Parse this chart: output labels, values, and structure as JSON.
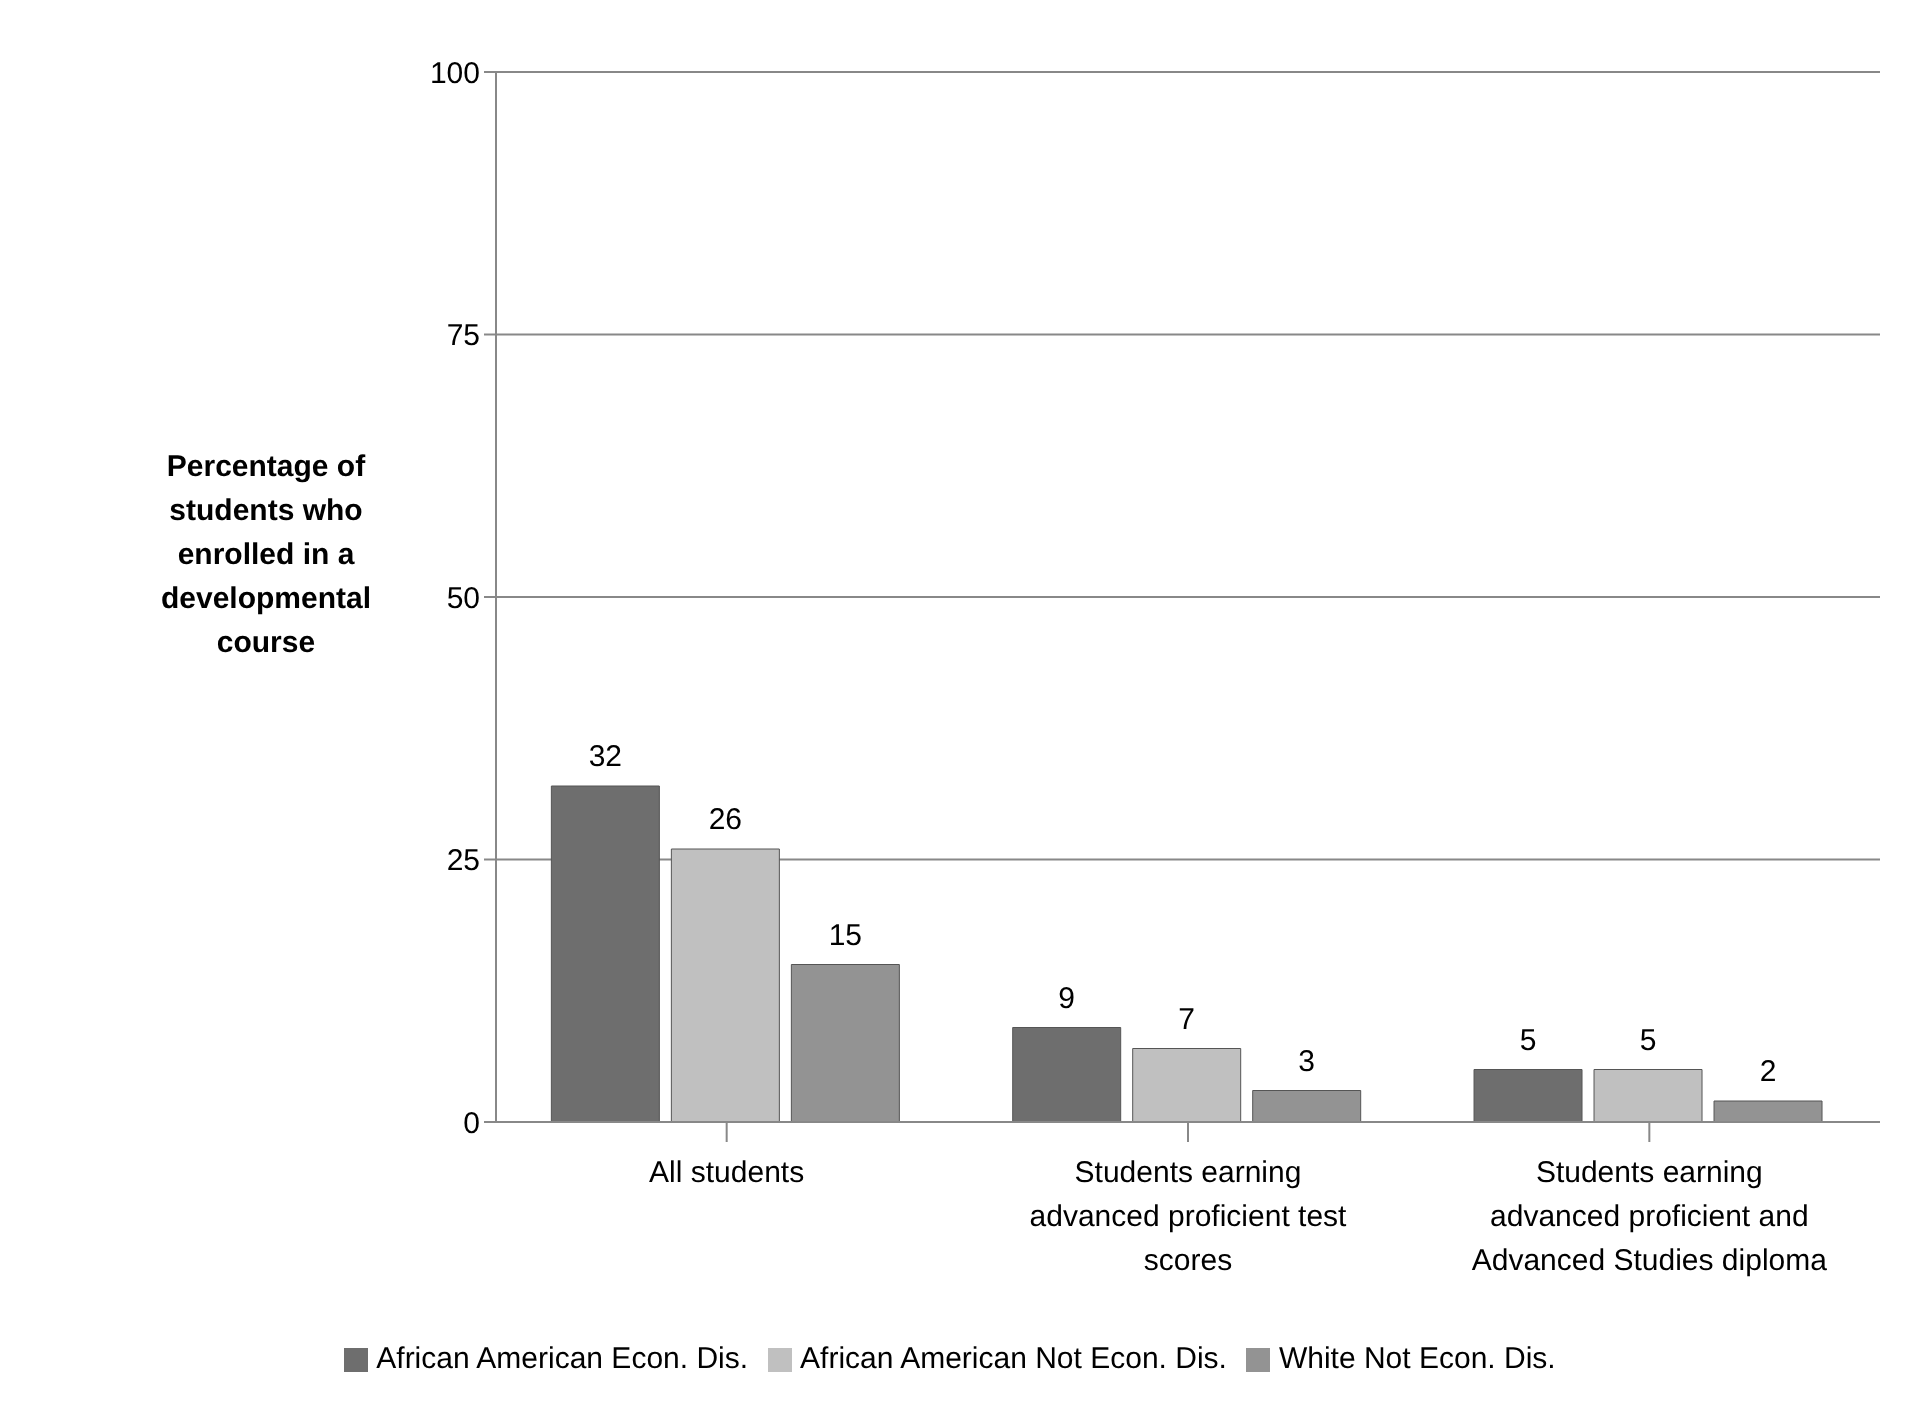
{
  "chart_data": {
    "type": "bar",
    "ylabel": "Percentage of students who enrolled in a developmental course",
    "categories": [
      "All students",
      "Students earning advanced proficient test scores",
      "Students earning advanced proficient and Advanced Studies diploma"
    ],
    "series": [
      {
        "name": "African American Econ. Dis.",
        "color": "#6e6e6e",
        "values": [
          32,
          9,
          5
        ]
      },
      {
        "name": "African American Not Econ. Dis.",
        "color": "#c0c0c0",
        "values": [
          26,
          7,
          5
        ]
      },
      {
        "name": "White Not Econ. Dis.",
        "color": "#939393",
        "values": [
          15,
          3,
          2
        ]
      }
    ],
    "ylim": [
      0,
      100
    ],
    "yticks": [
      0,
      25,
      50,
      75,
      100
    ],
    "grid": "y",
    "legend": "bottom",
    "data_labels": true
  }
}
